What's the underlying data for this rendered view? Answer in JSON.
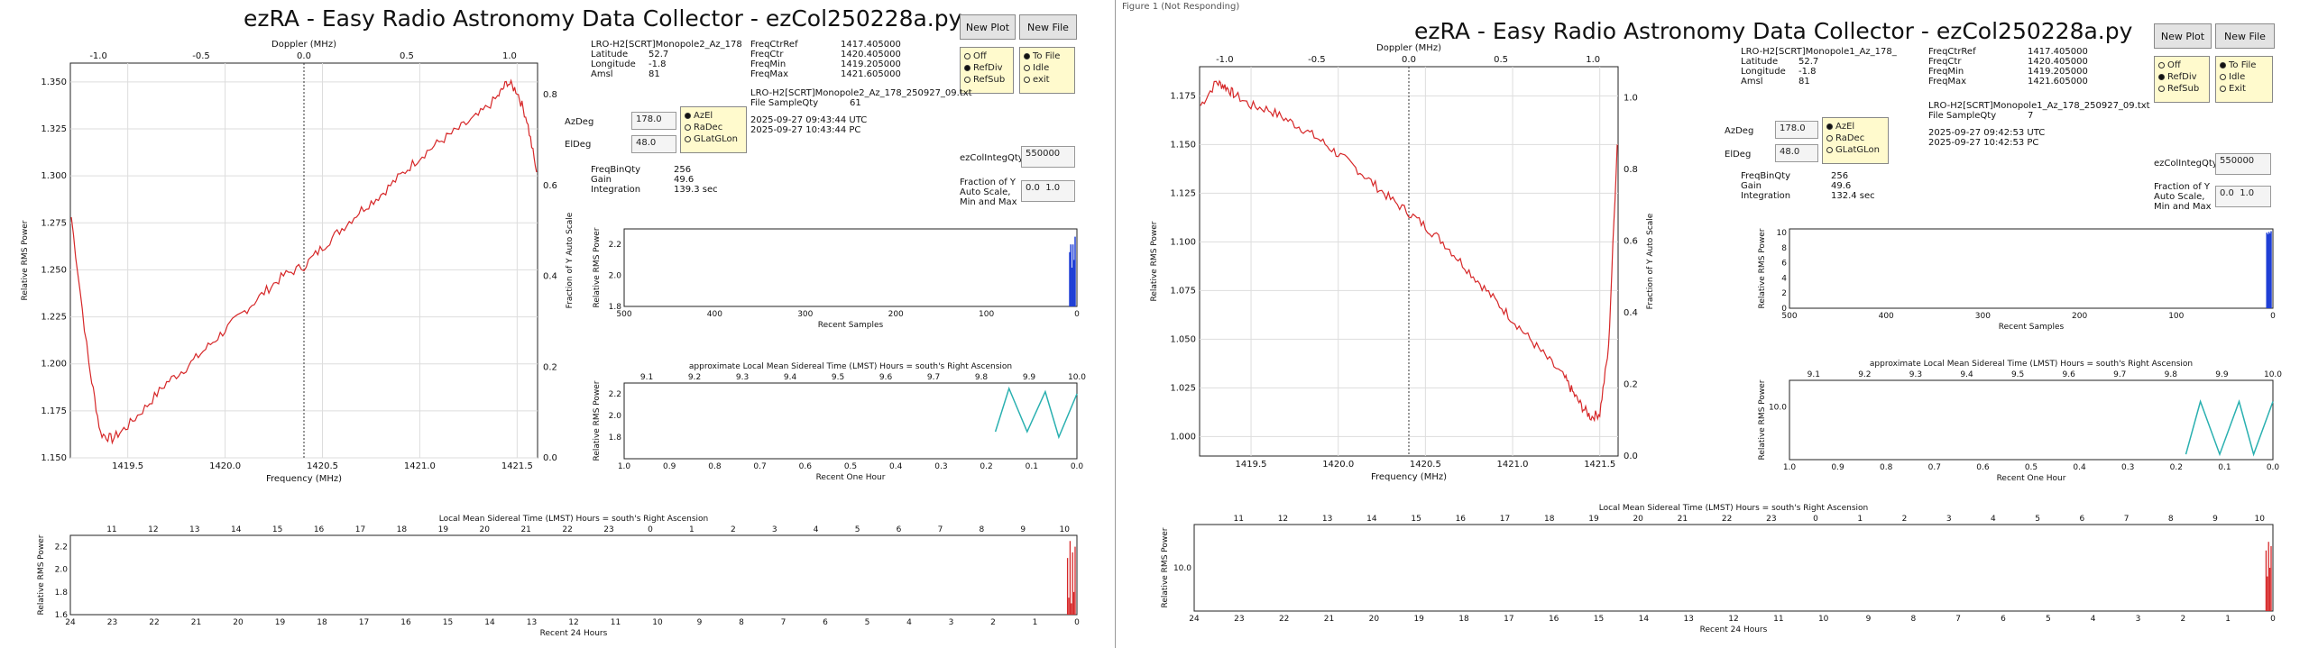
{
  "colors": {
    "spectrum": "#d62728",
    "samples": "#1f3fd6",
    "hour": "#2ab0b0",
    "day": "#d62728"
  },
  "window2_title": "Figure 1 (Not Responding)",
  "app_title": "ezRA - Easy Radio Astronomy Data Collector - ezCol250228a.py",
  "buttons": {
    "new_plot": "New Plot",
    "new_file": "New File",
    "az_ok": "AzEl",
    "ra_dec": "RaDec",
    "glat": "GLatGLon"
  },
  "win1": {
    "station": "LRO-H2[SCRT]Monopole2_Az_178",
    "lat_label": "Latitude",
    "lat": "52.7",
    "lon_label": "Longitude",
    "lon": "-1.8",
    "amsl_label": "Amsl",
    "amsl": "81",
    "freq_labels": [
      "FreqCtrRef",
      "FreqCtr",
      "FreqMin",
      "FreqMax"
    ],
    "freq_values": [
      "1417.405000",
      "1420.405000",
      "1419.205000",
      "1421.605000"
    ],
    "mode_options": [
      {
        "label": "Off",
        "on": false
      },
      {
        "label": "RefDiv",
        "on": true
      },
      {
        "label": "RefSub",
        "on": false
      }
    ],
    "file_options": [
      {
        "label": "To File",
        "on": true
      },
      {
        "label": "Idle",
        "on": false
      },
      {
        "label": "exit",
        "on": false
      }
    ],
    "az_label": "AzDeg",
    "az": "178.0",
    "el_label": "ElDeg",
    "el": "48.0",
    "coord_options": [
      {
        "label": "AzEl",
        "on": true
      },
      {
        "label": "RaDec",
        "on": false
      },
      {
        "label": "GLatGLon",
        "on": false
      }
    ],
    "file_name": "LRO-H2[SCRT]Monopole2_Az_178_250927_09.txt",
    "file_sample_label": "File SampleQty",
    "file_sample": "61",
    "utc": "2025-09-27  09:43:44  UTC",
    "pc": "2025-09-27  10:43:44  PC",
    "bins_label": "FreqBinQty",
    "bins": "256",
    "gain_label": "Gain",
    "gain": "49.6",
    "integ_label": "Integration",
    "integ": "139.3  sec",
    "collint_label": "ezColIntegQty",
    "collint": "550000",
    "fraction_label": "Fraction of Y Auto Scale, Min and Max",
    "fmin": "0.0",
    "fmax": "1.0"
  },
  "win2": {
    "station": "LRO-H2[SCRT]Monopole1_Az_178_",
    "lat_label": "Latitude",
    "lat": "52.7",
    "lon_label": "Longitude",
    "lon": "-1.8",
    "amsl_label": "Amsl",
    "amsl": "81",
    "freq_labels": [
      "FreqCtrRef",
      "FreqCtr",
      "FreqMin",
      "FreqMax"
    ],
    "freq_values": [
      "1417.405000",
      "1420.405000",
      "1419.205000",
      "1421.605000"
    ],
    "mode_options": [
      {
        "label": "Off",
        "on": false
      },
      {
        "label": "RefDiv",
        "on": true
      },
      {
        "label": "RefSub",
        "on": false
      }
    ],
    "file_options": [
      {
        "label": "To File",
        "on": true
      },
      {
        "label": "Idle",
        "on": false
      },
      {
        "label": "Exit",
        "on": false
      }
    ],
    "az_label": "AzDeg",
    "az": "178.0",
    "el_label": "ElDeg",
    "el": "48.0",
    "coord_options": [
      {
        "label": "AzEl",
        "on": true
      },
      {
        "label": "RaDec",
        "on": false
      },
      {
        "label": "GLatGLon",
        "on": false
      }
    ],
    "file_name": "LRO-H2[SCRT]Monopole1_Az_178_250927_09.txt",
    "file_sample_label": "File SampleQty",
    "file_sample": "7",
    "utc": "2025-09-27  09:42:53  UTC",
    "pc": "2025-09-27  10:42:53  PC",
    "bins_label": "FreqBinQty",
    "bins": "256",
    "gain_label": "Gain",
    "gain": "49.6",
    "integ_label": "Integration",
    "integ": "132.4  sec",
    "collint_label": "ezColIntegQty",
    "collint": "550000",
    "fraction_label": "Fraction of Y Auto Scale, Min and Max",
    "fmin": "0.0",
    "fmax": "1.0"
  },
  "chart_data": [
    {
      "id": "w1-spectrum",
      "type": "line",
      "xlabel": "Frequency (MHz)",
      "ylabel": "Relative RMS Power",
      "top_label": "Doppler (MHz)",
      "right_label": "Fraction of Y Auto Scale",
      "xlim": [
        1419.205,
        1421.605
      ],
      "ylim": [
        1.15,
        1.36
      ],
      "xticks": [
        1419.5,
        1420.0,
        1420.5,
        1421.0,
        1421.5
      ],
      "yticks": [
        1.15,
        1.175,
        1.2,
        1.225,
        1.25,
        1.275,
        1.3,
        1.325,
        1.35
      ],
      "topticks": [
        "-1.0",
        "-0.5",
        "0.0",
        "0.5",
        "1.0"
      ],
      "rticks": [
        "0.0",
        "0.2",
        "0.4",
        "0.6",
        "0.8"
      ],
      "x": [
        1419.21,
        1419.3,
        1419.36,
        1419.42,
        1419.5,
        1419.6,
        1419.7,
        1419.8,
        1419.9,
        1420.0,
        1420.1,
        1420.2,
        1420.3,
        1420.405,
        1420.5,
        1420.6,
        1420.7,
        1420.8,
        1420.9,
        1421.0,
        1421.1,
        1421.2,
        1421.3,
        1421.4,
        1421.45,
        1421.5,
        1421.55,
        1421.6
      ],
      "y": [
        1.278,
        1.2,
        1.163,
        1.16,
        1.167,
        1.178,
        1.19,
        1.198,
        1.208,
        1.218,
        1.228,
        1.238,
        1.247,
        1.252,
        1.262,
        1.272,
        1.282,
        1.29,
        1.3,
        1.31,
        1.318,
        1.325,
        1.332,
        1.342,
        1.35,
        1.345,
        1.33,
        1.302
      ]
    },
    {
      "id": "w1-samples",
      "type": "bar",
      "xlabel": "Recent Samples",
      "ylabel": "Relative RMS Power",
      "xlim": [
        500,
        0
      ],
      "ylim": [
        1.8,
        2.3
      ],
      "xticks": [
        "500",
        "400",
        "300",
        "200",
        "100",
        "0"
      ],
      "yticks": [
        "1.8",
        "2.0",
        "2.2"
      ],
      "recent": [
        2.25,
        2.1,
        2.2,
        2.05,
        2.2,
        2.15
      ]
    },
    {
      "id": "w1-hour",
      "type": "line",
      "title": "approximate Local Mean Sidereal Time (LMST) Hours = south's Right Ascension",
      "xlabel": "Recent One Hour",
      "ylabel": "Relative RMS Power",
      "xlim": [
        1.0,
        0.0
      ],
      "ylim": [
        1.6,
        2.3
      ],
      "xticks": [
        "1.0",
        "0.9",
        "0.8",
        "0.7",
        "0.6",
        "0.5",
        "0.4",
        "0.3",
        "0.2",
        "0.1",
        "0.0"
      ],
      "yticks": [
        "1.8",
        "2.0",
        "2.2"
      ],
      "topticks": [
        "9.1",
        "9.2",
        "9.3",
        "9.4",
        "9.5",
        "9.6",
        "9.7",
        "9.8",
        "9.9",
        "10.0"
      ],
      "x": [
        0.18,
        0.15,
        0.11,
        0.07,
        0.04,
        0.0
      ],
      "y": [
        1.85,
        2.25,
        1.85,
        2.22,
        1.8,
        2.2
      ]
    },
    {
      "id": "w1-day",
      "type": "bar",
      "title": "Local Mean Sidereal Time (LMST) Hours = south's Right Ascension",
      "xlabel": "Recent 24 Hours",
      "ylabel": "Relative RMS Power",
      "ylim": [
        1.6,
        2.3
      ],
      "xticks": [
        "24",
        "23",
        "22",
        "21",
        "20",
        "19",
        "18",
        "17",
        "16",
        "15",
        "14",
        "13",
        "12",
        "11",
        "10",
        "9",
        "8",
        "7",
        "6",
        "5",
        "4",
        "3",
        "2",
        "1",
        "0"
      ],
      "yticks": [
        "1.6",
        "1.8",
        "2.0",
        "2.2"
      ],
      "topticks": [
        "11",
        "12",
        "13",
        "14",
        "15",
        "16",
        "17",
        "18",
        "19",
        "20",
        "21",
        "22",
        "23",
        "0",
        "1",
        "2",
        "3",
        "4",
        "5",
        "6",
        "7",
        "8",
        "9",
        "10"
      ],
      "recent": [
        2.2,
        1.8,
        2.15,
        1.7,
        2.25,
        1.75,
        2.1
      ]
    },
    {
      "id": "w2-spectrum",
      "type": "line",
      "xlabel": "Frequency (MHz)",
      "ylabel": "Relative RMS Power",
      "top_label": "Doppler (MHz)",
      "right_label": "Fraction of Y Auto Scale",
      "xlim": [
        1419.205,
        1421.605
      ],
      "ylim": [
        0.99,
        1.19
      ],
      "xticks": [
        1419.5,
        1420.0,
        1420.5,
        1421.0,
        1421.5
      ],
      "yticks": [
        1.0,
        1.025,
        1.05,
        1.075,
        1.1,
        1.125,
        1.15,
        1.175
      ],
      "topticks": [
        "-1.0",
        "-0.5",
        "0.0",
        "0.5",
        "1.0"
      ],
      "rticks": [
        "0.0",
        "0.2",
        "0.4",
        "0.6",
        "0.8",
        "1.0"
      ],
      "x": [
        1419.21,
        1419.3,
        1419.35,
        1419.4,
        1419.5,
        1419.6,
        1419.7,
        1419.8,
        1419.9,
        1420.0,
        1420.1,
        1420.2,
        1420.3,
        1420.405,
        1420.5,
        1420.6,
        1420.7,
        1420.8,
        1420.9,
        1421.0,
        1421.1,
        1421.2,
        1421.3,
        1421.35,
        1421.4,
        1421.45,
        1421.5,
        1421.55,
        1421.6
      ],
      "y": [
        1.17,
        1.182,
        1.18,
        1.176,
        1.17,
        1.168,
        1.163,
        1.158,
        1.152,
        1.145,
        1.138,
        1.13,
        1.122,
        1.115,
        1.108,
        1.1,
        1.09,
        1.08,
        1.07,
        1.06,
        1.05,
        1.04,
        1.03,
        1.022,
        1.015,
        1.01,
        1.012,
        1.045,
        1.15
      ]
    },
    {
      "id": "w2-samples",
      "type": "bar",
      "xlabel": "Recent Samples",
      "ylabel": "Relative RMS Power",
      "xlim": [
        500,
        0
      ],
      "ylim": [
        0,
        10.5
      ],
      "xticks": [
        "500",
        "400",
        "300",
        "200",
        "100",
        "0"
      ],
      "yticks": [
        "0",
        "2",
        "4",
        "6",
        "8",
        "10"
      ],
      "recent": [
        10.2,
        9.9,
        10.1,
        9.8,
        10.0
      ]
    },
    {
      "id": "w2-hour",
      "type": "line",
      "title": "approximate Local Mean Sidereal Time (LMST) Hours = south's Right Ascension",
      "xlabel": "Recent One Hour",
      "ylabel": "Relative RMS Power",
      "xlim": [
        1.0,
        0.0
      ],
      "ylim": [
        9.8,
        10.1
      ],
      "xticks": [
        "1.0",
        "0.9",
        "0.8",
        "0.7",
        "0.6",
        "0.5",
        "0.4",
        "0.3",
        "0.2",
        "0.1",
        "0.0"
      ],
      "yticks": [
        "10.0"
      ],
      "topticks": [
        "9.1",
        "9.2",
        "9.3",
        "9.4",
        "9.5",
        "9.6",
        "9.7",
        "9.8",
        "9.9",
        "10.0"
      ],
      "x": [
        0.18,
        0.15,
        0.11,
        0.07,
        0.04,
        0.0
      ],
      "y": [
        9.82,
        10.02,
        9.82,
        10.02,
        9.82,
        10.02
      ]
    },
    {
      "id": "w2-day",
      "type": "bar",
      "title": "Local Mean Sidereal Time (LMST) Hours = south's Right Ascension",
      "xlabel": "Recent 24 Hours",
      "ylabel": "Relative RMS Power",
      "ylim": [
        9.9,
        10.1
      ],
      "xticks": [
        "24",
        "23",
        "22",
        "21",
        "20",
        "19",
        "18",
        "17",
        "16",
        "15",
        "14",
        "13",
        "12",
        "11",
        "10",
        "9",
        "8",
        "7",
        "6",
        "5",
        "4",
        "3",
        "2",
        "1",
        "0"
      ],
      "yticks": [
        "10.0"
      ],
      "topticks": [
        "11",
        "12",
        "13",
        "14",
        "15",
        "16",
        "17",
        "18",
        "19",
        "20",
        "21",
        "22",
        "23",
        "0",
        "1",
        "2",
        "3",
        "4",
        "5",
        "6",
        "7",
        "8",
        "9",
        "10"
      ],
      "recent": [
        10.05,
        10.0,
        10.06,
        9.98,
        10.04
      ]
    }
  ]
}
